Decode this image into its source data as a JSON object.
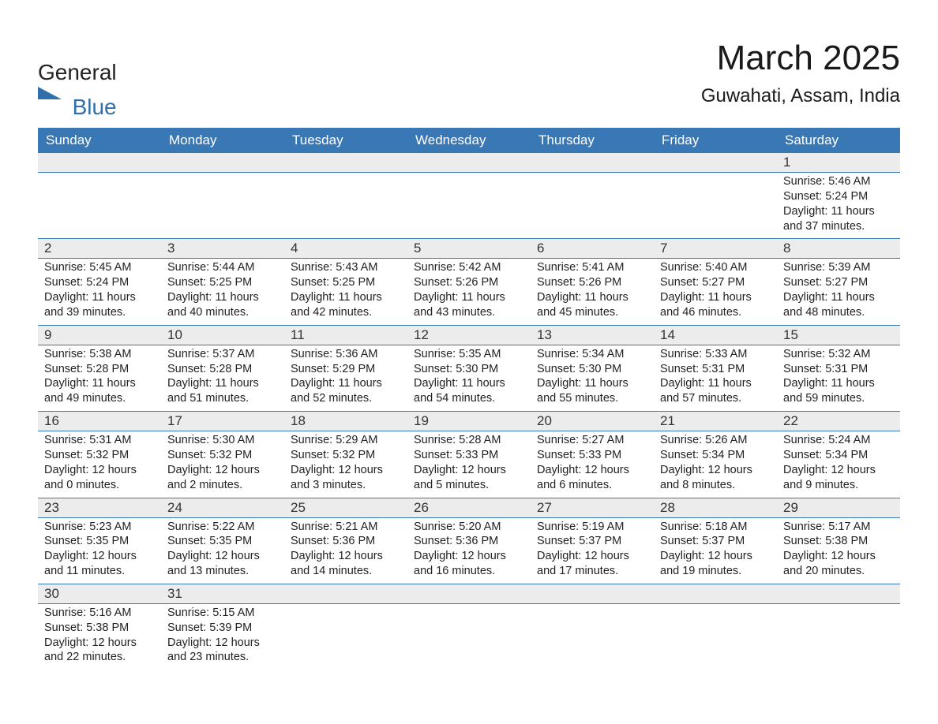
{
  "logo": {
    "word1": "General",
    "word2": "Blue",
    "shape_color": "#2f6fab",
    "text_color_main": "#222222"
  },
  "title": "March 2025",
  "location": "Guwahati, Assam, India",
  "header_bg": "#3a78b5",
  "daynum_bg": "#ececec",
  "separator_color": "#3a78b5",
  "day_headers": [
    "Sunday",
    "Monday",
    "Tuesday",
    "Wednesday",
    "Thursday",
    "Friday",
    "Saturday"
  ],
  "weeks": [
    [
      null,
      null,
      null,
      null,
      null,
      null,
      {
        "n": "1",
        "sunrise": "Sunrise: 5:46 AM",
        "sunset": "Sunset: 5:24 PM",
        "dl1": "Daylight: 11 hours",
        "dl2": "and 37 minutes."
      }
    ],
    [
      {
        "n": "2",
        "sunrise": "Sunrise: 5:45 AM",
        "sunset": "Sunset: 5:24 PM",
        "dl1": "Daylight: 11 hours",
        "dl2": "and 39 minutes."
      },
      {
        "n": "3",
        "sunrise": "Sunrise: 5:44 AM",
        "sunset": "Sunset: 5:25 PM",
        "dl1": "Daylight: 11 hours",
        "dl2": "and 40 minutes."
      },
      {
        "n": "4",
        "sunrise": "Sunrise: 5:43 AM",
        "sunset": "Sunset: 5:25 PM",
        "dl1": "Daylight: 11 hours",
        "dl2": "and 42 minutes."
      },
      {
        "n": "5",
        "sunrise": "Sunrise: 5:42 AM",
        "sunset": "Sunset: 5:26 PM",
        "dl1": "Daylight: 11 hours",
        "dl2": "and 43 minutes."
      },
      {
        "n": "6",
        "sunrise": "Sunrise: 5:41 AM",
        "sunset": "Sunset: 5:26 PM",
        "dl1": "Daylight: 11 hours",
        "dl2": "and 45 minutes."
      },
      {
        "n": "7",
        "sunrise": "Sunrise: 5:40 AM",
        "sunset": "Sunset: 5:27 PM",
        "dl1": "Daylight: 11 hours",
        "dl2": "and 46 minutes."
      },
      {
        "n": "8",
        "sunrise": "Sunrise: 5:39 AM",
        "sunset": "Sunset: 5:27 PM",
        "dl1": "Daylight: 11 hours",
        "dl2": "and 48 minutes."
      }
    ],
    [
      {
        "n": "9",
        "sunrise": "Sunrise: 5:38 AM",
        "sunset": "Sunset: 5:28 PM",
        "dl1": "Daylight: 11 hours",
        "dl2": "and 49 minutes."
      },
      {
        "n": "10",
        "sunrise": "Sunrise: 5:37 AM",
        "sunset": "Sunset: 5:28 PM",
        "dl1": "Daylight: 11 hours",
        "dl2": "and 51 minutes."
      },
      {
        "n": "11",
        "sunrise": "Sunrise: 5:36 AM",
        "sunset": "Sunset: 5:29 PM",
        "dl1": "Daylight: 11 hours",
        "dl2": "and 52 minutes."
      },
      {
        "n": "12",
        "sunrise": "Sunrise: 5:35 AM",
        "sunset": "Sunset: 5:30 PM",
        "dl1": "Daylight: 11 hours",
        "dl2": "and 54 minutes."
      },
      {
        "n": "13",
        "sunrise": "Sunrise: 5:34 AM",
        "sunset": "Sunset: 5:30 PM",
        "dl1": "Daylight: 11 hours",
        "dl2": "and 55 minutes."
      },
      {
        "n": "14",
        "sunrise": "Sunrise: 5:33 AM",
        "sunset": "Sunset: 5:31 PM",
        "dl1": "Daylight: 11 hours",
        "dl2": "and 57 minutes."
      },
      {
        "n": "15",
        "sunrise": "Sunrise: 5:32 AM",
        "sunset": "Sunset: 5:31 PM",
        "dl1": "Daylight: 11 hours",
        "dl2": "and 59 minutes."
      }
    ],
    [
      {
        "n": "16",
        "sunrise": "Sunrise: 5:31 AM",
        "sunset": "Sunset: 5:32 PM",
        "dl1": "Daylight: 12 hours",
        "dl2": "and 0 minutes."
      },
      {
        "n": "17",
        "sunrise": "Sunrise: 5:30 AM",
        "sunset": "Sunset: 5:32 PM",
        "dl1": "Daylight: 12 hours",
        "dl2": "and 2 minutes."
      },
      {
        "n": "18",
        "sunrise": "Sunrise: 5:29 AM",
        "sunset": "Sunset: 5:32 PM",
        "dl1": "Daylight: 12 hours",
        "dl2": "and 3 minutes."
      },
      {
        "n": "19",
        "sunrise": "Sunrise: 5:28 AM",
        "sunset": "Sunset: 5:33 PM",
        "dl1": "Daylight: 12 hours",
        "dl2": "and 5 minutes."
      },
      {
        "n": "20",
        "sunrise": "Sunrise: 5:27 AM",
        "sunset": "Sunset: 5:33 PM",
        "dl1": "Daylight: 12 hours",
        "dl2": "and 6 minutes."
      },
      {
        "n": "21",
        "sunrise": "Sunrise: 5:26 AM",
        "sunset": "Sunset: 5:34 PM",
        "dl1": "Daylight: 12 hours",
        "dl2": "and 8 minutes."
      },
      {
        "n": "22",
        "sunrise": "Sunrise: 5:24 AM",
        "sunset": "Sunset: 5:34 PM",
        "dl1": "Daylight: 12 hours",
        "dl2": "and 9 minutes."
      }
    ],
    [
      {
        "n": "23",
        "sunrise": "Sunrise: 5:23 AM",
        "sunset": "Sunset: 5:35 PM",
        "dl1": "Daylight: 12 hours",
        "dl2": "and 11 minutes."
      },
      {
        "n": "24",
        "sunrise": "Sunrise: 5:22 AM",
        "sunset": "Sunset: 5:35 PM",
        "dl1": "Daylight: 12 hours",
        "dl2": "and 13 minutes."
      },
      {
        "n": "25",
        "sunrise": "Sunrise: 5:21 AM",
        "sunset": "Sunset: 5:36 PM",
        "dl1": "Daylight: 12 hours",
        "dl2": "and 14 minutes."
      },
      {
        "n": "26",
        "sunrise": "Sunrise: 5:20 AM",
        "sunset": "Sunset: 5:36 PM",
        "dl1": "Daylight: 12 hours",
        "dl2": "and 16 minutes."
      },
      {
        "n": "27",
        "sunrise": "Sunrise: 5:19 AM",
        "sunset": "Sunset: 5:37 PM",
        "dl1": "Daylight: 12 hours",
        "dl2": "and 17 minutes."
      },
      {
        "n": "28",
        "sunrise": "Sunrise: 5:18 AM",
        "sunset": "Sunset: 5:37 PM",
        "dl1": "Daylight: 12 hours",
        "dl2": "and 19 minutes."
      },
      {
        "n": "29",
        "sunrise": "Sunrise: 5:17 AM",
        "sunset": "Sunset: 5:38 PM",
        "dl1": "Daylight: 12 hours",
        "dl2": "and 20 minutes."
      }
    ],
    [
      {
        "n": "30",
        "sunrise": "Sunrise: 5:16 AM",
        "sunset": "Sunset: 5:38 PM",
        "dl1": "Daylight: 12 hours",
        "dl2": "and 22 minutes."
      },
      {
        "n": "31",
        "sunrise": "Sunrise: 5:15 AM",
        "sunset": "Sunset: 5:39 PM",
        "dl1": "Daylight: 12 hours",
        "dl2": "and 23 minutes."
      },
      null,
      null,
      null,
      null,
      null
    ]
  ]
}
